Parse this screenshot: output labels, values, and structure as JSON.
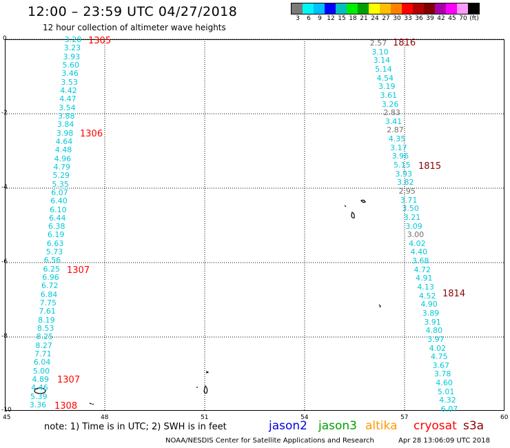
{
  "header": {
    "title": "12:00 – 23:59 UTC 04/27/2018",
    "subtitle": "12 hour collection of altimeter wave heights"
  },
  "scale": {
    "colors": [
      "#7a7a7a",
      "#00f5f5",
      "#00bfff",
      "#0000ff",
      "#00bfbf",
      "#00ee00",
      "#00a000",
      "#ffff00",
      "#ffbf00",
      "#ff8000",
      "#ff0000",
      "#b00000",
      "#800000",
      "#aa00aa",
      "#ff00ff",
      "#ff99ff",
      "#000000"
    ],
    "labels": [
      "3",
      "6",
      "9",
      "12",
      "15",
      "18",
      "21",
      "24",
      "27",
      "30",
      "33",
      "36",
      "39",
      "42",
      "45",
      "70",
      "(ft)"
    ]
  },
  "axes": {
    "y_labels": [
      "0",
      "-2",
      "-4",
      "-6",
      "-8",
      "-10"
    ],
    "x_labels": [
      "45",
      "48",
      "51",
      "54",
      "57",
      "60"
    ]
  },
  "tracks": [
    {
      "name": "left",
      "values": [
        "3.28",
        "3.23",
        "3.93",
        "5.60",
        "3.46",
        "3.53",
        "4.42",
        "4.47",
        "3.54",
        "3.88",
        "3.84",
        "3.98",
        "4.64",
        "4.48",
        "4.96",
        "4.79",
        "5.29",
        "5.35",
        "6.07",
        "6.40",
        "6.10",
        "6.44",
        "6.38",
        "6.19",
        "6.63",
        "5.73",
        "6.56",
        "6.25",
        "6.96",
        "6.72",
        "6.84",
        "7.75",
        "7.61",
        "8.19",
        "8.53",
        "8.25",
        "8.27",
        "7.71",
        "6.04",
        "5.00",
        "4.89",
        "4.46",
        "5.39",
        "3.36"
      ]
    },
    {
      "name": "right",
      "values": [
        "2.57",
        "3.10",
        "3.14",
        "5.14",
        "4.54",
        "3.19",
        "3.61",
        "3.26",
        "2.83",
        "3.41",
        "2.87",
        "4.35",
        "3.17",
        "3.96",
        "5.15",
        "3.93",
        "3.82",
        "2.95",
        "3.71",
        "3.50",
        "3.21",
        "3.09",
        "3.00",
        "4.02",
        "4.40",
        "3.68",
        "4.72",
        "4.91",
        "4.13",
        "4.52",
        "4.90",
        "3.89",
        "3.91",
        "4.80",
        "3.97",
        "4.02",
        "4.75",
        "3.67",
        "3.78",
        "4.60",
        "5.01",
        "4.32",
        "6.07"
      ],
      "gray": [
        0,
        8,
        10,
        17,
        22
      ]
    }
  ],
  "times": [
    "1305",
    "1306",
    "1307",
    "1307",
    "1308",
    "1816",
    "1815",
    "1814"
  ],
  "footer": {
    "note": "note:  1) Time is in UTC;  2) SWH is in feet",
    "satellites": [
      {
        "name": "jason2",
        "color": "#0000dd"
      },
      {
        "name": "jason3",
        "color": "#00a000"
      },
      {
        "name": "altika",
        "color": "#ff9900"
      },
      {
        "name": "cryosat",
        "color": "#ff0000"
      },
      {
        "name": "s3a",
        "color": "#8b0000"
      }
    ],
    "credit": "NOAA/NESDIS Center for Satellite Applications and Research",
    "timestamp": "Apr 28 13:06:09 UTC 2018"
  }
}
